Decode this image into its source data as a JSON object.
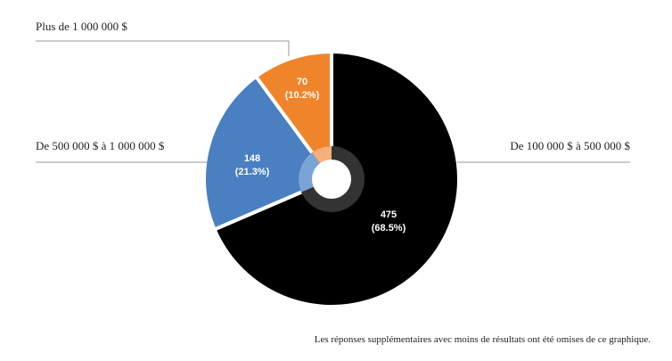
{
  "chart_data": {
    "type": "pie",
    "categories": [
      "De 100 000 $ à 500 000 $",
      "De 500 000 $ à 1 000 000 $",
      "Plus de 1 000 000 $"
    ],
    "values": [
      475,
      148,
      70
    ],
    "percent_labels": [
      "(68.5%)",
      "(21.3%)",
      "(10.2%)"
    ],
    "value_labels": [
      "475",
      "148",
      "70"
    ],
    "colors": [
      "#000000",
      "#4a7fc1",
      "#f0842a"
    ],
    "donut_ring_color": "#333333",
    "note": "Les réponses supplémentaires avec moins de résultats ont été omises de ce graphique."
  }
}
